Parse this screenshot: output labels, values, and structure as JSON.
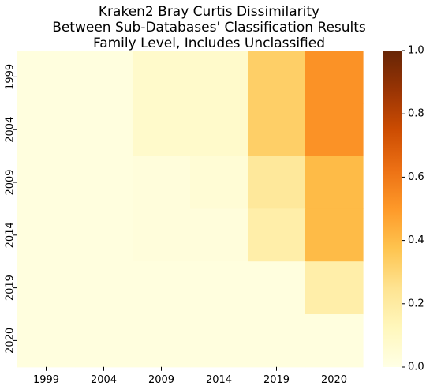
{
  "chart_data": {
    "type": "heatmap",
    "title_lines": [
      "Kraken2 Bray Curtis Dissimilarity",
      "Between Sub-Databases' Classification Results",
      "Family Level, Includes Unclassified"
    ],
    "x_categories": [
      "1999",
      "2004",
      "2009",
      "2014",
      "2019",
      "2020"
    ],
    "y_categories": [
      "1999",
      "2004",
      "2009",
      "2014",
      "2019",
      "2020"
    ],
    "values": [
      [
        0.02,
        0.02,
        0.08,
        0.08,
        0.33,
        0.52
      ],
      [
        0.02,
        0.02,
        0.08,
        0.08,
        0.33,
        0.52
      ],
      [
        0.02,
        0.02,
        0.03,
        0.05,
        0.22,
        0.4
      ],
      [
        0.02,
        0.02,
        0.03,
        0.03,
        0.18,
        0.4
      ],
      [
        0.02,
        0.02,
        0.02,
        0.02,
        0.02,
        0.18
      ],
      [
        0.02,
        0.02,
        0.02,
        0.02,
        0.02,
        0.02
      ]
    ],
    "colormap": "YlOrBr",
    "colorbar": {
      "min": 0.0,
      "max": 1.0,
      "ticks": [
        "0.0",
        "0.2",
        "0.4",
        "0.6",
        "0.8",
        "1.0"
      ]
    },
    "grid": false
  }
}
